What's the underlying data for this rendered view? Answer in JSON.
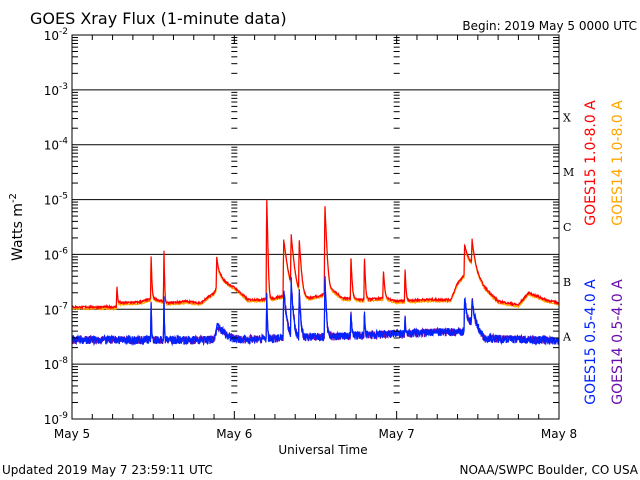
{
  "chart_data": {
    "type": "line",
    "title": "GOES Xray Flux (1-minute data)",
    "begin_label": "Begin:  2019 May 5 0000 UTC",
    "xlabel": "Universal Time",
    "ylabel": "Watts m",
    "ylabel_exp": "-2",
    "x_unit": "hours since 2019 May 5 0000 UTC",
    "xlim": [
      0,
      72
    ],
    "ylim": [
      1e-09,
      0.01
    ],
    "yscale": "log",
    "grid": "horizontal at each decade",
    "x_ticks": [
      {
        "x": 0,
        "label": "May 5"
      },
      {
        "x": 24,
        "label": "May 6"
      },
      {
        "x": 48,
        "label": "May 7"
      },
      {
        "x": 72,
        "label": "May 8"
      }
    ],
    "y_ticks": [
      {
        "v": 0.01,
        "base": "10",
        "exp": "-2"
      },
      {
        "v": 0.001,
        "base": "10",
        "exp": "-3"
      },
      {
        "v": 0.0001,
        "base": "10",
        "exp": "-4"
      },
      {
        "v": 1e-05,
        "base": "10",
        "exp": "-5"
      },
      {
        "v": 1e-06,
        "base": "10",
        "exp": "-6"
      },
      {
        "v": 1e-07,
        "base": "10",
        "exp": "-7"
      },
      {
        "v": 1e-08,
        "base": "10",
        "exp": "-8"
      },
      {
        "v": 1e-09,
        "base": "10",
        "exp": "-9"
      }
    ],
    "flare_classes": [
      {
        "label": "X",
        "v": 0.000316
      },
      {
        "label": "M",
        "v": 3.16e-05
      },
      {
        "label": "C",
        "v": 3.16e-06
      },
      {
        "label": "B",
        "v": 3.16e-07
      },
      {
        "label": "A",
        "v": 3.16e-08
      }
    ],
    "series": [
      {
        "name": "GOES15 1.0-8.0 A",
        "color": "#ff0000",
        "channel": "long",
        "baseline": [
          [
            0,
            1.1e-07
          ],
          [
            6.5,
            1.1e-07
          ],
          [
            7,
            1.3e-07
          ],
          [
            10,
            1.35e-07
          ],
          [
            12,
            1.6e-07
          ],
          [
            14,
            1.3e-07
          ],
          [
            17,
            1.4e-07
          ],
          [
            19,
            1.3e-07
          ],
          [
            21,
            2e-07
          ],
          [
            22,
            3.5e-07
          ],
          [
            24,
            2.5e-07
          ],
          [
            26,
            1.5e-07
          ],
          [
            28,
            1.5e-07
          ],
          [
            30,
            1.6e-07
          ],
          [
            33,
            2e-07
          ],
          [
            35,
            1.6e-07
          ],
          [
            37,
            1.8e-07
          ],
          [
            38,
            2.5e-07
          ],
          [
            40,
            1.6e-07
          ],
          [
            43,
            1.5e-07
          ],
          [
            46,
            1.6e-07
          ],
          [
            48,
            1.4e-07
          ],
          [
            52,
            1.5e-07
          ],
          [
            56,
            1.5e-07
          ],
          [
            57,
            3e-07
          ],
          [
            59,
            6e-07
          ],
          [
            61,
            2.5e-07
          ],
          [
            63,
            1.4e-07
          ],
          [
            66,
            1.2e-07
          ],
          [
            67.5,
            2e-07
          ],
          [
            70,
            1.5e-07
          ],
          [
            72,
            1.3e-07
          ]
        ],
        "flares": [
          [
            6.6,
            2.3e-07,
            0.1
          ],
          [
            11.7,
            7.6e-07,
            0.08
          ],
          [
            13.6,
            1e-06,
            0.06
          ],
          [
            21.4,
            6.3e-07,
            0.3
          ],
          [
            28.8,
            1e-05,
            0.08
          ],
          [
            31.3,
            1.7e-06,
            0.4
          ],
          [
            32.4,
            2e-06,
            0.3
          ],
          [
            33.6,
            1.6e-06,
            0.2
          ],
          [
            37.4,
            7.4e-06,
            0.15
          ],
          [
            41.2,
            1.1e-06,
            0.12
          ],
          [
            43.2,
            1.1e-06,
            0.1
          ],
          [
            46,
            4.7e-07,
            0.15
          ],
          [
            49.2,
            6.3e-07,
            0.1
          ],
          [
            58,
            1.2e-06,
            0.5
          ],
          [
            59.1,
            1.4e-06,
            0.3
          ]
        ]
      },
      {
        "name": "GOES14 1.0-8.0 A",
        "color": "#ffa500",
        "channel": "long",
        "scale": 0.93
      },
      {
        "name": "GOES15 0.5-4.0 A",
        "color": "#0022ff",
        "channel": "short",
        "baseline": [
          [
            0,
            2.8e-08
          ],
          [
            21,
            2.8e-08
          ],
          [
            21.5,
            5e-08
          ],
          [
            23,
            3.3e-08
          ],
          [
            25,
            2.8e-08
          ],
          [
            58,
            4e-08
          ],
          [
            58.5,
            5e-08
          ],
          [
            59.5,
            6e-08
          ],
          [
            61,
            3e-08
          ],
          [
            72,
            2.7e-08
          ]
        ],
        "flares": [
          [
            11.7,
            1e-07,
            0.05
          ],
          [
            13.6,
            1.4e-07,
            0.04
          ],
          [
            28.8,
            1.6e-07,
            0.06
          ],
          [
            31.3,
            1.9e-07,
            0.3
          ],
          [
            32.4,
            3e-07,
            0.2
          ],
          [
            33.6,
            1.8e-07,
            0.15
          ],
          [
            37.4,
            3.4e-07,
            0.12
          ],
          [
            41.2,
            1.2e-07,
            0.08
          ],
          [
            43.2,
            1.2e-07,
            0.06
          ],
          [
            49.2,
            8e-08,
            0.06
          ],
          [
            58,
            1.3e-07,
            0.3
          ],
          [
            59.1,
            1.3e-07,
            0.2
          ]
        ]
      },
      {
        "name": "GOES14 0.5-4.0 A",
        "color": "#6a0dad",
        "channel": "short",
        "scale": 1.0
      }
    ]
  },
  "footer": {
    "updated": "Updated 2019 May  7 23:59:11 UTC",
    "credit": "NOAA/SWPC Boulder, CO USA"
  }
}
